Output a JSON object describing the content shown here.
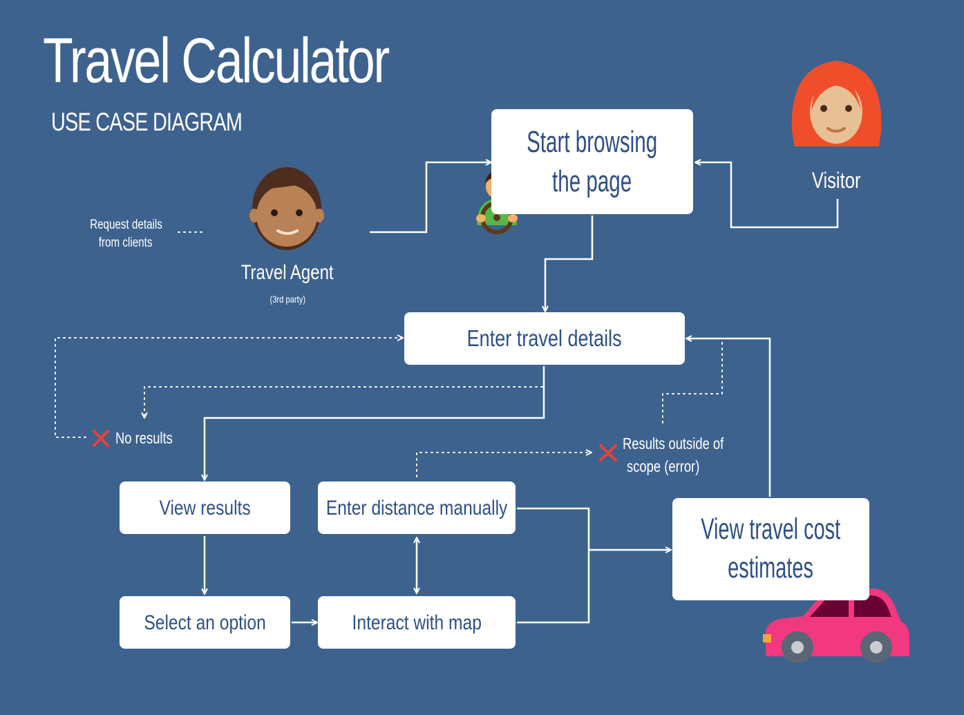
{
  "header": {
    "title": "Travel Calculator",
    "subtitle": "USE CASE DIAGRAM"
  },
  "actors": {
    "travel_agent": {
      "name": "Travel Agent",
      "note": "(3rd party)",
      "icon": "man-face-icon"
    },
    "visitor": {
      "name": "Visitor",
      "icon": "woman-face-icon"
    },
    "driver_icon": "driver-icon",
    "car_icon": "car-icon"
  },
  "notes": {
    "request_details_line1": "Request details",
    "request_details_line2": "from clients",
    "no_results": "No results",
    "results_scope_line1": "Results outside of",
    "results_scope_line2": "scope (error)"
  },
  "use_cases": {
    "start_browsing_line1": "Start browsing",
    "start_browsing_line2": "the page",
    "enter_travel_details": "Enter travel details",
    "view_results": "View results",
    "select_option": "Select an option",
    "enter_distance": "Enter distance manually",
    "interact_map": "Interact with map",
    "view_cost_line1": "View travel cost",
    "view_cost_line2": "estimates"
  },
  "colors": {
    "background": "#3d628e",
    "box": "#ffffff",
    "box_text": "#2d4f86",
    "error_x": "#e8413b",
    "car_body": "#f2387f",
    "car_window": "#6a0033"
  }
}
